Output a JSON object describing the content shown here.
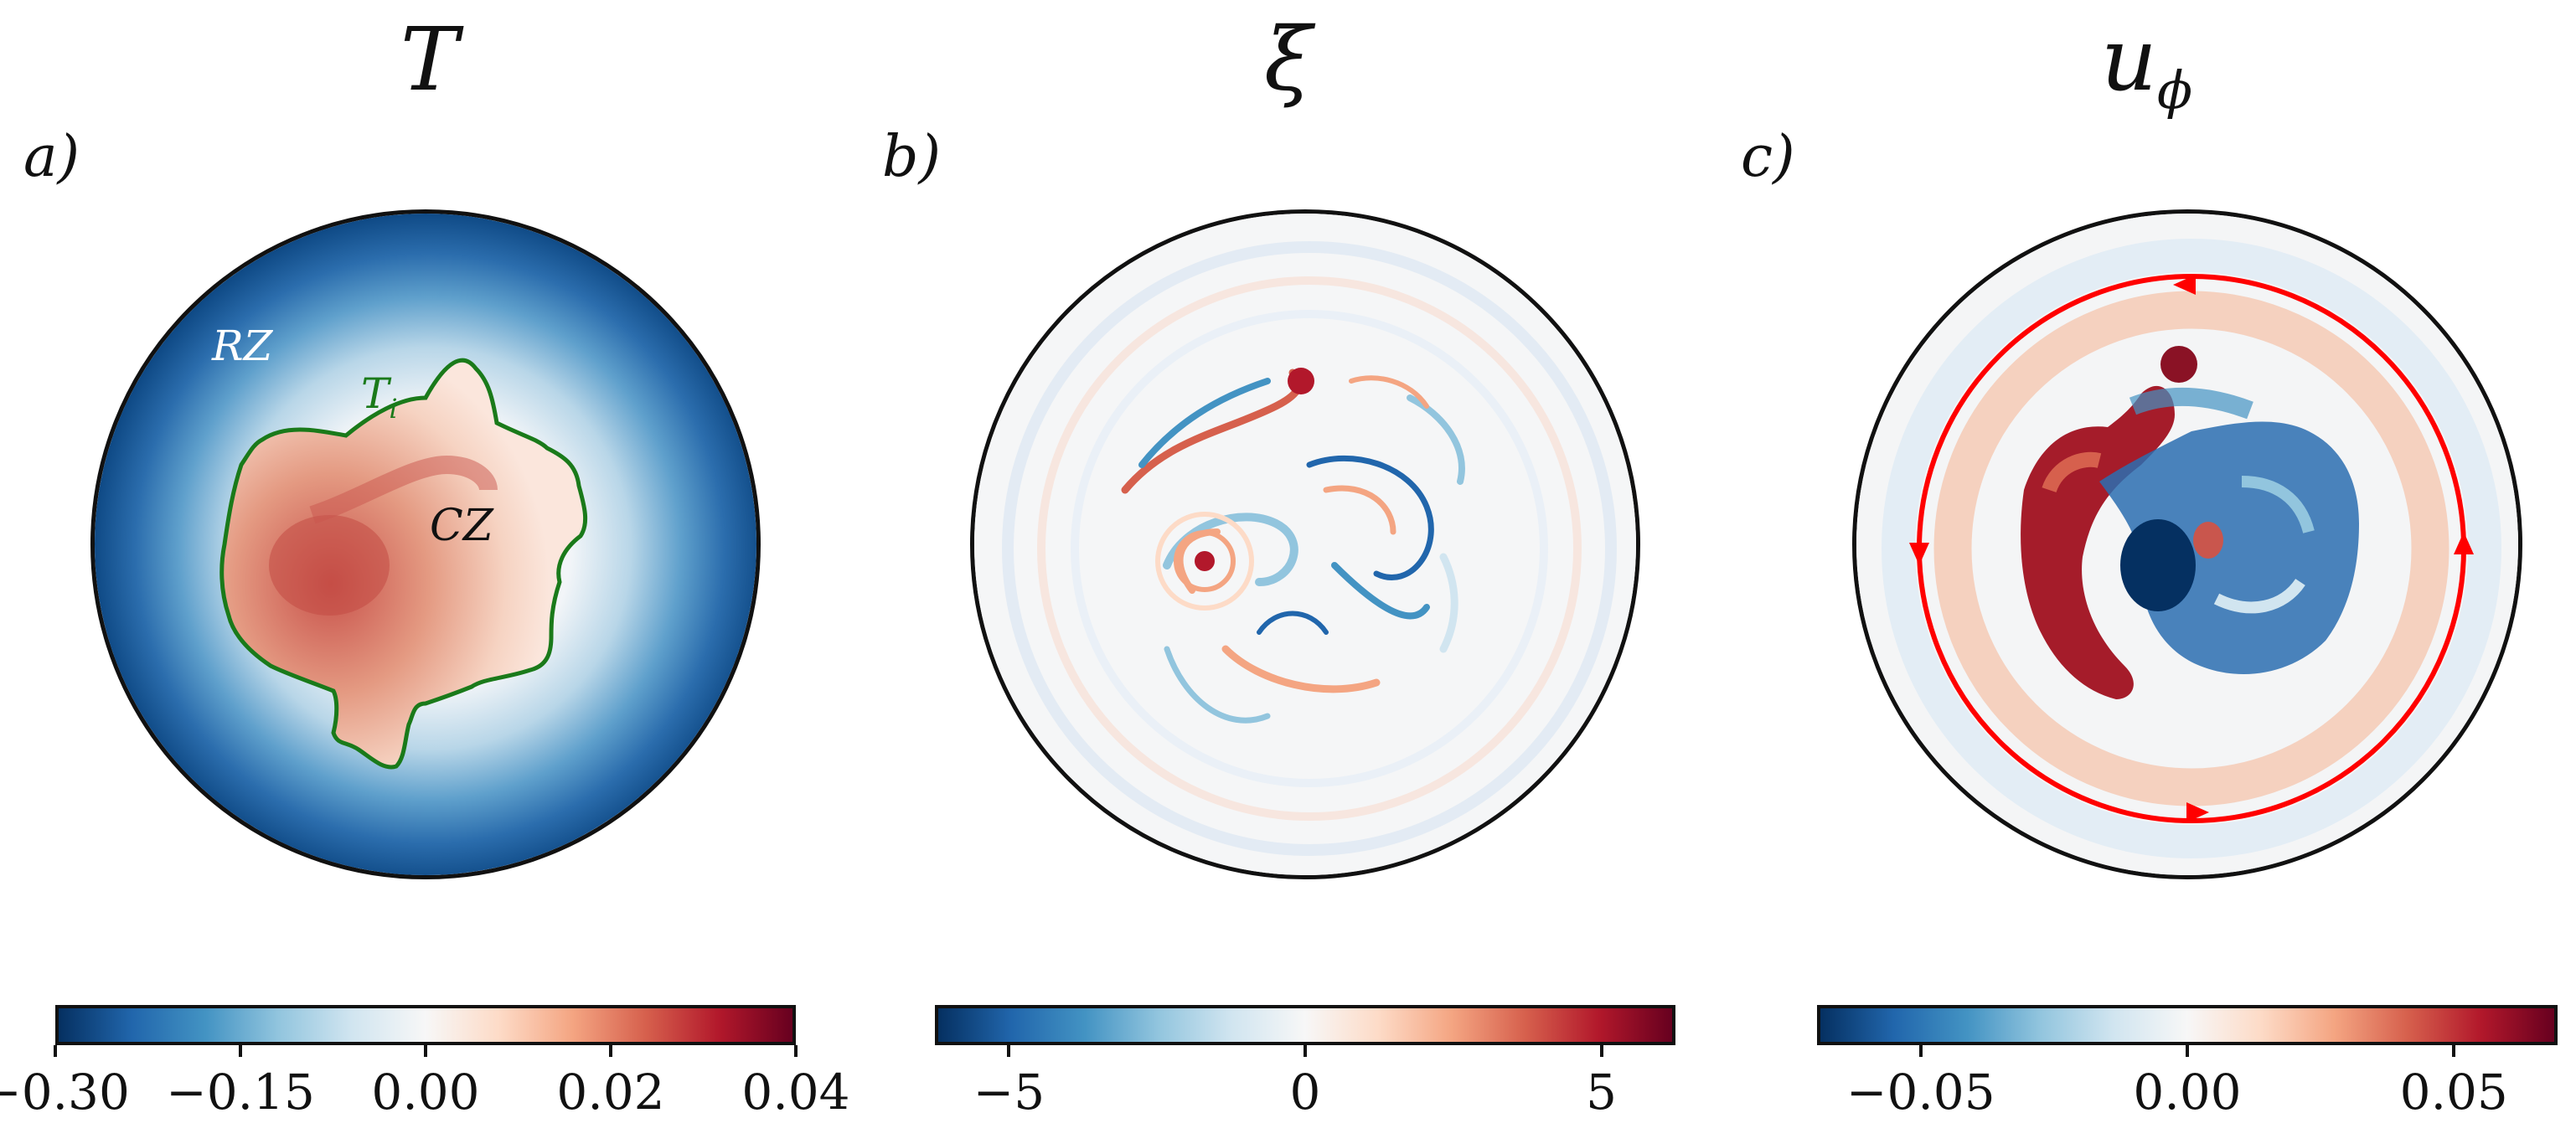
{
  "panels": [
    {
      "tag": "a)",
      "title_main": "T",
      "title_sub": "",
      "labels": {
        "rz": "RZ",
        "cz": "CZ",
        "ti_main": "T",
        "ti_sub": "i"
      },
      "colorbar": {
        "ticks": [
          "−0.30",
          "−0.15",
          "0.00",
          "0.02",
          "0.04"
        ],
        "tick_frac": [
          0.0,
          0.25,
          0.5,
          0.75,
          1.0
        ]
      }
    },
    {
      "tag": "b)",
      "title_main": "ξ",
      "title_sub": "",
      "colorbar": {
        "ticks": [
          "−5",
          "0",
          "5"
        ],
        "tick_frac": [
          0.1,
          0.5,
          0.9
        ]
      }
    },
    {
      "tag": "c)",
      "title_main": "u",
      "title_sub": "ϕ",
      "colorbar": {
        "ticks": [
          "−0.05",
          "0.00",
          "0.05"
        ],
        "tick_frac": [
          0.14,
          0.5,
          0.86
        ]
      }
    }
  ],
  "colors": {
    "blue_dark": "#053061",
    "blue": "#2166ac",
    "white": "#f7f7f7",
    "red": "#b2182b",
    "red_dark": "#67001f",
    "contour": "#1a7a1a",
    "arrow": "#ff0000"
  }
}
